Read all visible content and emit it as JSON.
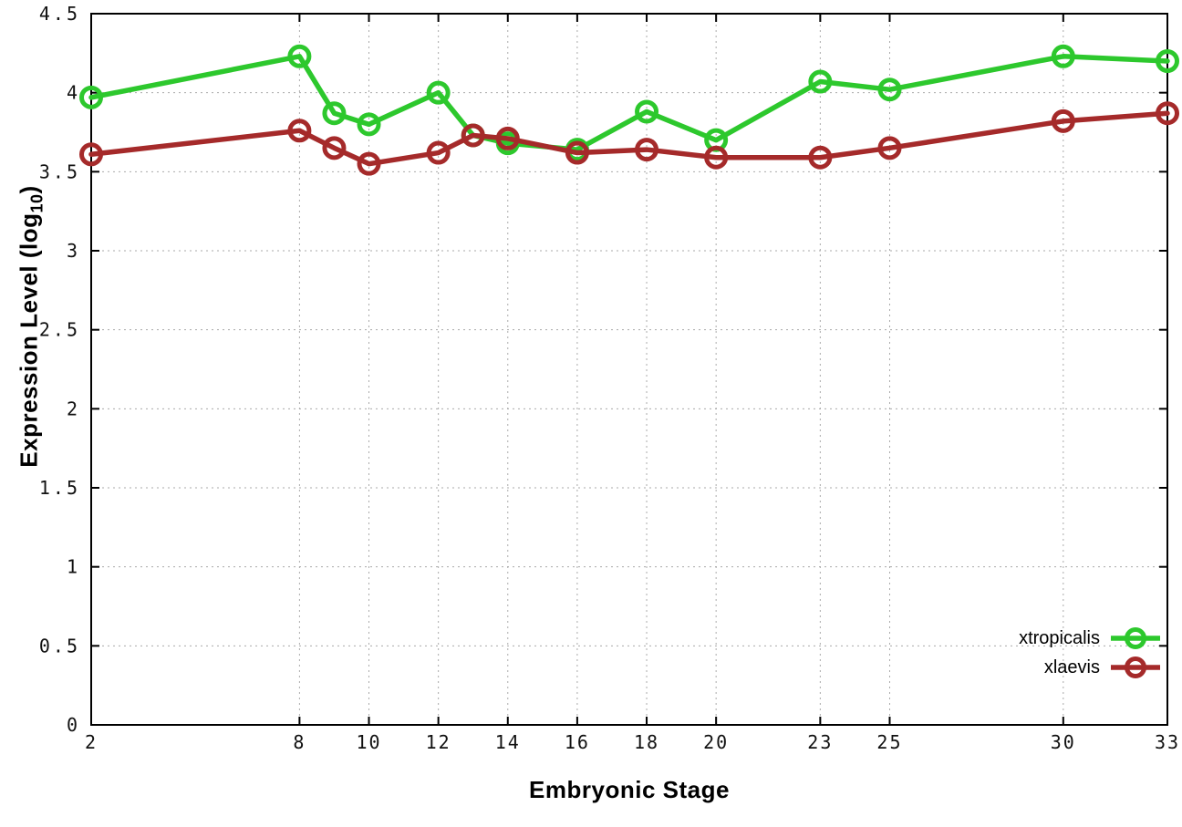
{
  "figure": {
    "background": "#ffffff",
    "ylabel": {
      "prefix": "Expression Level (log",
      "sub": "10",
      "suffix": ")"
    },
    "xlabel": "Embryonic Stage"
  },
  "legend": {
    "position": "bottom-right",
    "entries": [
      {
        "label": "xtropicalis",
        "color": "#2dc82d"
      },
      {
        "label": "xlaevis",
        "color": "#a52a2a"
      }
    ]
  },
  "chart_data": {
    "type": "line",
    "title": "",
    "xlabel": "Embryonic Stage",
    "ylabel": "Expression Level (log10)",
    "x": [
      2,
      8,
      9,
      10,
      12,
      13,
      14,
      16,
      18,
      20,
      23,
      25,
      30,
      33
    ],
    "series": [
      {
        "name": "xtropicalis",
        "color": "#2dc82d",
        "values": [
          3.97,
          4.23,
          3.87,
          3.8,
          4.0,
          3.73,
          3.68,
          3.64,
          3.88,
          3.7,
          4.07,
          4.02,
          4.23,
          4.2
        ]
      },
      {
        "name": "xlaevis",
        "color": "#a52a2a",
        "values": [
          3.61,
          3.76,
          3.65,
          3.55,
          3.62,
          3.73,
          3.71,
          3.62,
          3.64,
          3.59,
          3.59,
          3.65,
          3.82,
          3.87
        ]
      }
    ],
    "xlim": [
      2,
      33
    ],
    "ylim": [
      0,
      4.5
    ],
    "xtick_labels": [
      "2",
      "8",
      "10",
      "12",
      "14",
      "16",
      "18",
      "20",
      "23",
      "25",
      "30",
      "33"
    ],
    "ytick_labels": [
      "0",
      "0.5",
      "1",
      "1.5",
      "2",
      "2.5",
      "3",
      "3.5",
      "4",
      "4.5"
    ],
    "grid": true,
    "grid_style": "dotted",
    "marker": "open-circle",
    "legend_position": "bottom-right",
    "axis_color": "#000000",
    "grid_color": "#aaaaaa"
  }
}
